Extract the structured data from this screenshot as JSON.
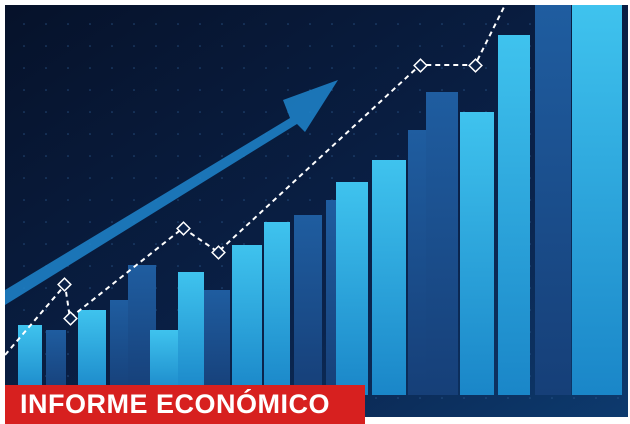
{
  "banner": {
    "text": "INFORME ECONÓMICO"
  }
}
